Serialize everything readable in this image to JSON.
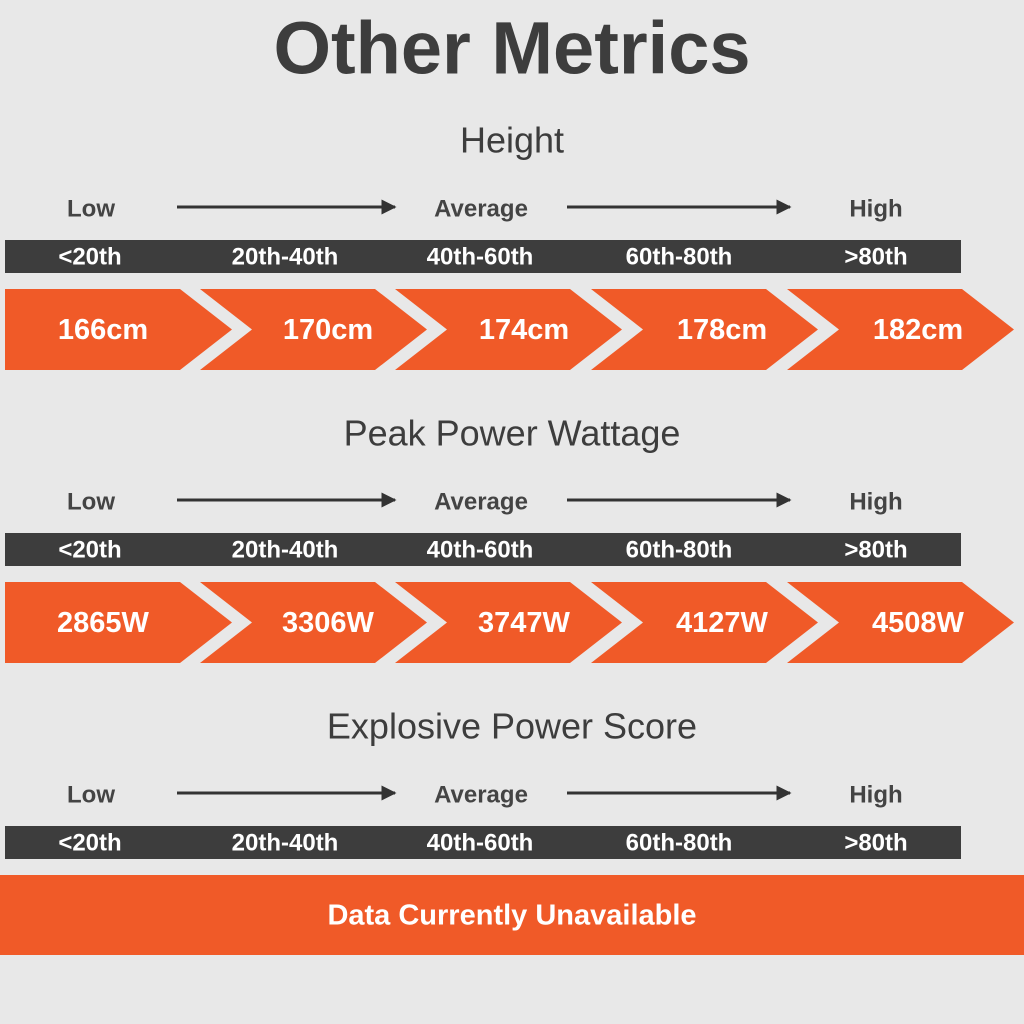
{
  "title": "Other Metrics",
  "sections": [
    {
      "title": "Height",
      "scale": {
        "low": "Low",
        "average": "Average",
        "high": "High"
      },
      "percentiles": [
        "<20th",
        "20th-40th",
        "40th-60th",
        "60th-80th",
        ">80th"
      ],
      "values": [
        "166cm",
        "170cm",
        "174cm",
        "178cm",
        "182cm"
      ]
    },
    {
      "title": "Peak Power Wattage",
      "scale": {
        "low": "Low",
        "average": "Average",
        "high": "High"
      },
      "percentiles": [
        "<20th",
        "20th-40th",
        "40th-60th",
        "60th-80th",
        ">80th"
      ],
      "values": [
        "2865W",
        "3306W",
        "3747W",
        "4127W",
        "4508W"
      ]
    },
    {
      "title": "Explosive Power Score",
      "scale": {
        "low": "Low",
        "average": "Average",
        "high": "High"
      },
      "percentiles": [
        "<20th",
        "20th-40th",
        "40th-60th",
        "60th-80th",
        ">80th"
      ],
      "message": "Data Currently Unavailable"
    }
  ]
}
